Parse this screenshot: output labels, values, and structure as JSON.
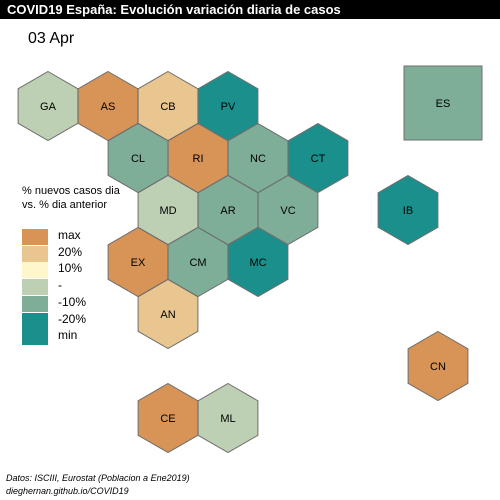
{
  "header": {
    "title": "COVID19 España: Evolución variación diaria de casos"
  },
  "date_label": "03 Apr",
  "legend": {
    "title_line1": "% nuevos casos dia",
    "title_line2": "vs. % dia anterior",
    "items": [
      {
        "label": "max",
        "color": "#d79456"
      },
      {
        "label": "20%",
        "color": "#e9c690"
      },
      {
        "label": "10%",
        "color": "#fff6cb"
      },
      {
        "label": "-",
        "color": "#bed0b4"
      },
      {
        "label": "-10%",
        "color": "#7fae98"
      },
      {
        "label": "-20%",
        "color": "#1b8f8c"
      },
      {
        "label": "min",
        "color": "#1b8f8c"
      }
    ]
  },
  "regions": [
    {
      "code": "GA",
      "color": "#bed0b4"
    },
    {
      "code": "AS",
      "color": "#d79456"
    },
    {
      "code": "CB",
      "color": "#e9c690"
    },
    {
      "code": "PV",
      "color": "#1b8f8c"
    },
    {
      "code": "CL",
      "color": "#7fae98"
    },
    {
      "code": "RI",
      "color": "#d79456"
    },
    {
      "code": "NC",
      "color": "#7fae98"
    },
    {
      "code": "CT",
      "color": "#1b8f8c"
    },
    {
      "code": "MD",
      "color": "#bed0b4"
    },
    {
      "code": "AR",
      "color": "#7fae98"
    },
    {
      "code": "VC",
      "color": "#7fae98"
    },
    {
      "code": "EX",
      "color": "#d79456"
    },
    {
      "code": "CM",
      "color": "#7fae98"
    },
    {
      "code": "MC",
      "color": "#1b8f8c"
    },
    {
      "code": "AN",
      "color": "#e9c690"
    },
    {
      "code": "IB",
      "color": "#1b8f8c"
    },
    {
      "code": "CN",
      "color": "#d79456"
    },
    {
      "code": "CE",
      "color": "#d79456"
    },
    {
      "code": "ML",
      "color": "#bed0b4"
    },
    {
      "code": "ES",
      "color": "#7fae98"
    }
  ],
  "source": {
    "line1": "Datos: ISCIII, Eurostat (Poblacion a Ene2019)",
    "line2": "dieghernan.github.io/COVID19"
  }
}
